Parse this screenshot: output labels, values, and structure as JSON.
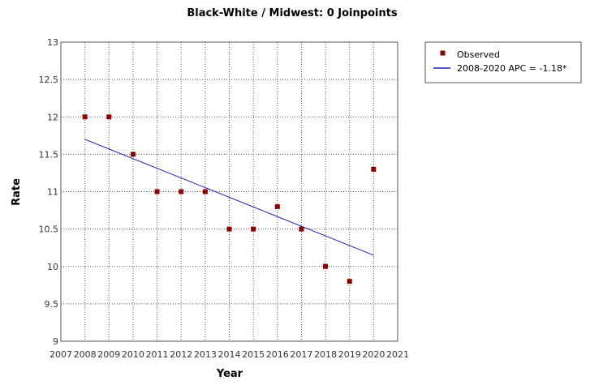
{
  "chart_data": {
    "type": "scatter",
    "title": "Black-White / Midwest: 0 Joinpoints",
    "xlabel": "Year",
    "ylabel": "Rate",
    "xlim": [
      2007,
      2021
    ],
    "ylim": [
      9,
      13
    ],
    "x_ticks": [
      2007,
      2008,
      2009,
      2010,
      2011,
      2012,
      2013,
      2014,
      2015,
      2016,
      2017,
      2018,
      2019,
      2020,
      2021
    ],
    "y_ticks": [
      9,
      9.5,
      10,
      10.5,
      11,
      11.5,
      12,
      12.5,
      13
    ],
    "y_tick_labels": [
      "9",
      "9.5",
      "10",
      "10.5",
      "11",
      "11.5",
      "12",
      "12.5",
      "13"
    ],
    "grid": true,
    "legend_position": "right",
    "series": [
      {
        "name": "Observed",
        "kind": "points",
        "color": "#8b0000",
        "x": [
          2008,
          2009,
          2010,
          2011,
          2012,
          2013,
          2014,
          2015,
          2016,
          2017,
          2018,
          2019,
          2020
        ],
        "y": [
          12.0,
          12.0,
          11.5,
          11.0,
          11.0,
          11.0,
          10.5,
          10.5,
          10.8,
          10.5,
          10.0,
          9.8,
          11.3
        ]
      },
      {
        "name": "2008-2020 APC  = -1.18*",
        "kind": "line",
        "color": "#1f1fb4",
        "x": [
          2008,
          2020
        ],
        "y": [
          11.7,
          10.15
        ]
      }
    ]
  }
}
